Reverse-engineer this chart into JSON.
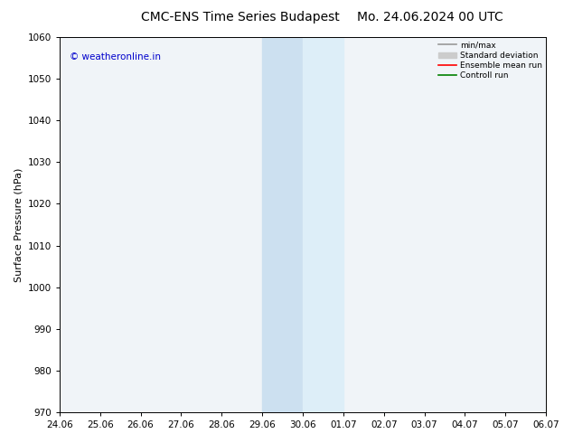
{
  "title": "CMC-ENS Time Series Budapest",
  "title2": "Mo. 24.06.2024 00 UTC",
  "ylabel": "Surface Pressure (hPa)",
  "ylim": [
    970,
    1060
  ],
  "yticks": [
    970,
    980,
    990,
    1000,
    1010,
    1020,
    1030,
    1040,
    1050,
    1060
  ],
  "x_labels": [
    "24.06",
    "25.06",
    "26.06",
    "27.06",
    "28.06",
    "29.06",
    "30.06",
    "01.07",
    "02.07",
    "03.07",
    "04.07",
    "05.07",
    "06.07"
  ],
  "x_values": [
    0,
    1,
    2,
    3,
    4,
    5,
    6,
    7,
    8,
    9,
    10,
    11,
    12
  ],
  "shaded_region1": [
    5,
    6
  ],
  "shaded_region2": [
    6,
    7
  ],
  "shaded_color1": "#cce0f0",
  "shaded_color2": "#ddeef8",
  "plot_bg_color": "#f0f4f8",
  "watermark": "© weatheronline.in",
  "watermark_color": "#0000cc",
  "legend_entries": [
    "min/max",
    "Standard deviation",
    "Ensemble mean run",
    "Controll run"
  ],
  "legend_colors": [
    "#999999",
    "#cccccc",
    "#ff0000",
    "#008000"
  ],
  "background_color": "#ffffff",
  "spine_color": "#000000",
  "tick_color": "#000000",
  "label_color": "#000000",
  "title_fontsize": 10,
  "label_fontsize": 8,
  "tick_fontsize": 7.5
}
